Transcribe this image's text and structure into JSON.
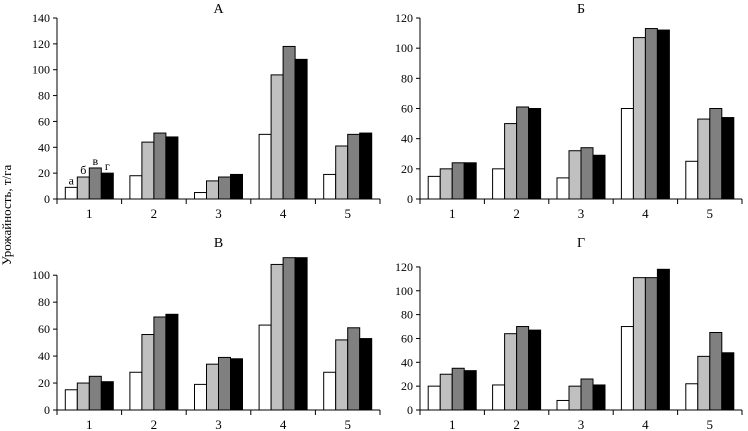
{
  "ylabel": "Урожайность, т/га",
  "series_colors": [
    "#ffffff",
    "#c0c0c0",
    "#808080",
    "#000000"
  ],
  "chart_data": [
    {
      "type": "bar",
      "title": "А",
      "categories": [
        "1",
        "2",
        "3",
        "4",
        "5"
      ],
      "ylim": [
        0,
        140
      ],
      "yticks": [
        0,
        20,
        40,
        60,
        80,
        100,
        120,
        140
      ],
      "series": [
        {
          "name": "а",
          "values": [
            9,
            18,
            5,
            50,
            19
          ]
        },
        {
          "name": "б",
          "values": [
            17,
            44,
            14,
            96,
            41
          ]
        },
        {
          "name": "в",
          "values": [
            24,
            51,
            17,
            118,
            50
          ]
        },
        {
          "name": "г",
          "values": [
            20,
            48,
            19,
            108,
            51
          ]
        }
      ],
      "annotations": [
        "а",
        "б",
        "в",
        "г"
      ]
    },
    {
      "type": "bar",
      "title": "Б",
      "categories": [
        "1",
        "2",
        "3",
        "4",
        "5"
      ],
      "ylim": [
        0,
        120
      ],
      "yticks": [
        0,
        20,
        40,
        60,
        80,
        100,
        120
      ],
      "series": [
        {
          "name": "а",
          "values": [
            15,
            20,
            14,
            60,
            25
          ]
        },
        {
          "name": "б",
          "values": [
            20,
            50,
            32,
            107,
            53
          ]
        },
        {
          "name": "в",
          "values": [
            24,
            61,
            34,
            113,
            60
          ]
        },
        {
          "name": "г",
          "values": [
            24,
            60,
            29,
            112,
            54
          ]
        }
      ]
    },
    {
      "type": "bar",
      "title": "В",
      "categories": [
        "1",
        "2",
        "3",
        "4",
        "5"
      ],
      "ylim": [
        0,
        115
      ],
      "yticks": [
        0,
        20,
        40,
        60,
        80,
        100
      ],
      "series": [
        {
          "name": "а",
          "values": [
            15,
            28,
            19,
            63,
            28
          ]
        },
        {
          "name": "б",
          "values": [
            20,
            56,
            34,
            108,
            52
          ]
        },
        {
          "name": "в",
          "values": [
            25,
            69,
            39,
            113,
            61
          ]
        },
        {
          "name": "г",
          "values": [
            21,
            71,
            38,
            113,
            53
          ]
        }
      ]
    },
    {
      "type": "bar",
      "title": "Г",
      "categories": [
        "1",
        "2",
        "3",
        "4",
        "5"
      ],
      "ylim": [
        0,
        130
      ],
      "yticks": [
        0,
        20,
        40,
        60,
        80,
        100,
        120
      ],
      "series": [
        {
          "name": "а",
          "values": [
            20,
            21,
            8,
            70,
            22
          ]
        },
        {
          "name": "б",
          "values": [
            30,
            64,
            20,
            111,
            45
          ]
        },
        {
          "name": "в",
          "values": [
            35,
            70,
            26,
            111,
            65
          ]
        },
        {
          "name": "г",
          "values": [
            33,
            67,
            21,
            118,
            48
          ]
        }
      ]
    }
  ]
}
